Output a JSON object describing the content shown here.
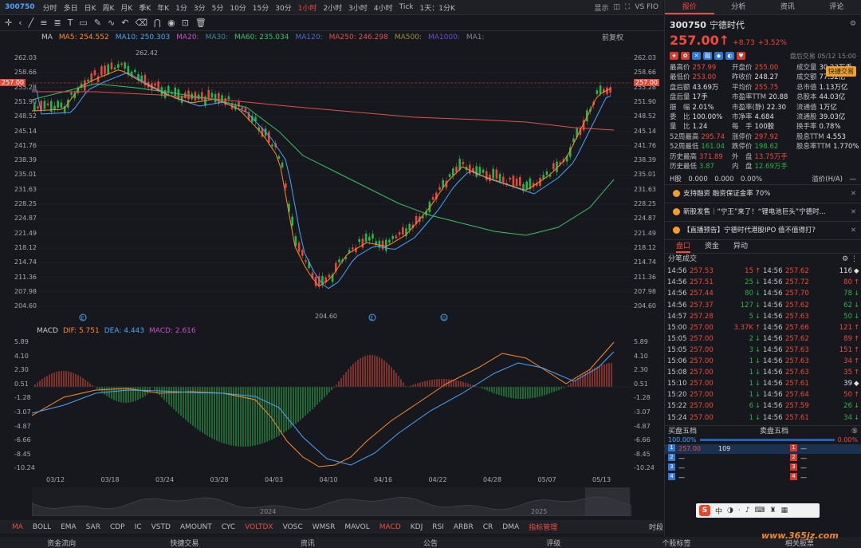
{
  "toolbar": {
    "code": "300750",
    "tf": [
      "分时",
      "多日",
      "日K",
      "周K",
      "月K",
      "季K",
      "年K",
      "1分",
      "3分",
      "5分",
      "10分",
      "15分",
      "30分",
      "1小时",
      "2小时",
      "3小时",
      "4小时",
      "Tick",
      "1天：1分K"
    ],
    "active": "1小时",
    "show": "显示",
    "vs": "VS FIO"
  },
  "ma": {
    "label": "MA",
    "items": [
      {
        "t": "MA5: 254.552",
        "c": "#ff8a2a"
      },
      {
        "t": "MA10: 250.303",
        "c": "#4aa3ff"
      },
      {
        "t": "MA20:",
        "c": "#d04ad0"
      },
      {
        "t": "MA30:",
        "c": "#3f8a9f"
      },
      {
        "t": "MA60: 235.034",
        "c": "#3cc06a"
      },
      {
        "t": "MA120:",
        "c": "#4a6ad8"
      },
      {
        "t": "MA250: 246.298",
        "c": "#e05050"
      },
      {
        "t": "MA500:",
        "c": "#a08a3a"
      },
      {
        "t": "MA1000:",
        "c": "#6a4ad8"
      },
      {
        "t": "MA1:",
        "c": "#888888"
      }
    ],
    "adj": "前复权"
  },
  "yaxis": [
    "262.03",
    "258.66",
    "255.28",
    "251.90",
    "248.52",
    "245.14",
    "241.76",
    "238.39",
    "235.01",
    "231.63",
    "228.25",
    "224.87",
    "221.49",
    "218.12",
    "214.74",
    "211.36",
    "207.98",
    "204.60"
  ],
  "price_marker": "257.00",
  "hi_label": "262.42",
  "lo_label": "204.60",
  "macd": {
    "label": "MACD",
    "dif": "DIF: 5.751",
    "dea": "DEA: 4.443",
    "macd": "MACD: 2.616",
    "yaxis": [
      "5.89",
      "4.10",
      "2.30",
      "0.51",
      "-1.28",
      "-3.07",
      "-4.87",
      "-6.66",
      "-8.45",
      "-10.24"
    ]
  },
  "dates": [
    "03/12",
    "03/18",
    "03/24",
    "03/28",
    "04/03",
    "04/10",
    "04/16",
    "04/22",
    "04/28",
    "05/07",
    "05/13"
  ],
  "years": [
    "2024",
    "2025"
  ],
  "indicators": [
    "MA",
    "BOLL",
    "EMA",
    "SAR",
    "CDP",
    "IC",
    "VSTD",
    "AMOUNT",
    "CYC",
    "VOLTDX",
    "VOSC",
    "WMSR",
    "MAVOL",
    "MACD",
    "KDJ",
    "RSI",
    "ARBR",
    "CR",
    "DMA",
    "指标管理",
    "时段"
  ],
  "bottom": [
    "资金流向",
    "快捷交易",
    "资讯",
    "公告",
    "评级",
    "个股标签",
    "相关股票"
  ],
  "right": {
    "tabs": [
      "报价",
      "分析",
      "资讯",
      "评论"
    ],
    "code": "300750",
    "name": "宁德时代",
    "price": "257.00",
    "chg": "+8.73",
    "pct": "+3.52%",
    "time": "盘后交易 05/12 15:00",
    "quick": "快捷交易",
    "stats": [
      [
        "最高价",
        "257.99",
        "r",
        "开盘价",
        "255.00",
        "r",
        "成交量",
        "30.23万手",
        "w"
      ],
      [
        "最低价",
        "253.00",
        "r",
        "昨收价",
        "248.27",
        "w",
        "成交额",
        "77.32亿",
        "w"
      ],
      [
        "盘后额",
        "43.69万",
        "w",
        "平均价",
        "255.75",
        "r",
        "总市值",
        "1.13万亿",
        "w"
      ],
      [
        "盘后量",
        "17手",
        "w",
        "市盈率TTM",
        "20.88",
        "w",
        "总股本",
        "44.03亿",
        "w"
      ],
      [
        "振　幅",
        "2.01%",
        "w",
        "市盈率(静)",
        "22.30",
        "w",
        "流通值",
        "1万亿",
        "w"
      ],
      [
        "委　比",
        "100.00%",
        "w",
        "市净率",
        "4.684",
        "w",
        "流通股",
        "39.03亿",
        "w"
      ],
      [
        "量　比",
        "1.24",
        "w",
        "每　手",
        "100股",
        "w",
        "换手率",
        "0.78%",
        "w"
      ],
      [
        "52周最高",
        "295.74",
        "r",
        "涨停价",
        "297.92",
        "r",
        "股息TTM",
        "4.553",
        "w"
      ],
      [
        "52周最低",
        "161.04",
        "g",
        "跌停价",
        "198.62",
        "g",
        "股息率TTM",
        "1.770%",
        "w"
      ],
      [
        "历史最高",
        "371.89",
        "r",
        "外　盘",
        "13.75万手",
        "r",
        "",
        "",
        " "
      ],
      [
        "历史最低",
        "3.87",
        "g",
        "内　盘",
        "12.69万手",
        "g",
        "",
        "",
        " "
      ]
    ],
    "hrow": {
      "l": "H股　0.000　0.000　0.00%",
      "r": "溢价(H/A)　—"
    },
    "news": [
      "支持融资 融资保证金率 70%",
      "新股发售｜“宁王”来了！“锂电池巨头”宁德时...",
      "【直播预告】宁德时代港股IPO 值不值得打?"
    ],
    "subtabs": [
      "盘口",
      "资金",
      "异动"
    ],
    "trades_title": "分笔成交",
    "trades": [
      [
        "14:56",
        "257.53",
        "15",
        "r",
        "14:56",
        "257.62",
        "116",
        "w"
      ],
      [
        "14:56",
        "257.51",
        "25",
        "g",
        "14:56",
        "257.72",
        "80",
        "r"
      ],
      [
        "14:56",
        "257.44",
        "80",
        "g",
        "14:56",
        "257.70",
        "78",
        "g"
      ],
      [
        "14:56",
        "257.37",
        "127",
        "g",
        "14:56",
        "257.62",
        "62",
        "g"
      ],
      [
        "14:57",
        "257.28",
        "5",
        "g",
        "14:56",
        "257.63",
        "50",
        "g"
      ],
      [
        "15:00",
        "257.00",
        "3.37K",
        "r",
        "14:56",
        "257.66",
        "121",
        "r"
      ],
      [
        "15:05",
        "257.00",
        "2",
        "g",
        "14:56",
        "257.62",
        "89",
        "r"
      ],
      [
        "15:05",
        "257.00",
        "3",
        "g",
        "14:56",
        "257.63",
        "151",
        "r"
      ],
      [
        "15:06",
        "257.00",
        "1",
        "g",
        "14:56",
        "257.63",
        "34",
        "r"
      ],
      [
        "15:08",
        "257.00",
        "1",
        "g",
        "14:56",
        "257.63",
        "35",
        "r"
      ],
      [
        "15:10",
        "257.00",
        "1",
        "g",
        "14:56",
        "257.61",
        "39",
        "w"
      ],
      [
        "15:20",
        "257.00",
        "1",
        "g",
        "14:56",
        "257.64",
        "50",
        "r"
      ],
      [
        "15:22",
        "257.00",
        "6",
        "g",
        "14:56",
        "257.59",
        "26",
        "g"
      ],
      [
        "15:24",
        "257.00",
        "1",
        "g",
        "14:56",
        "257.61",
        "34",
        "g"
      ]
    ],
    "buy5": "买盘五档",
    "sell5": "卖盘五档",
    "pct_l": "100.00%",
    "pct_r": "0.00%",
    "levels": [
      [
        "1",
        "257.00",
        "109",
        "—"
      ],
      [
        "2",
        "—",
        "",
        "—"
      ],
      [
        "3",
        "—",
        "",
        "—"
      ],
      [
        "4",
        "—",
        "",
        "—"
      ]
    ]
  },
  "ime": {
    "s": "S",
    "t": "中"
  },
  "watermark": "www.365jz.com"
}
